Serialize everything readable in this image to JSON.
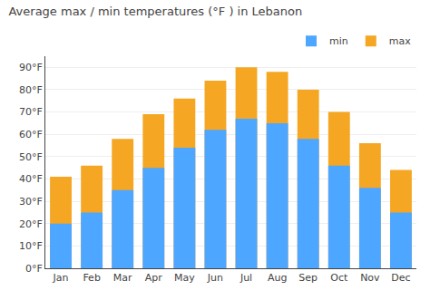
{
  "chart_data": {
    "type": "bar",
    "title": "Average max / min temperatures (°F ) in Lebanon",
    "categories": [
      "Jan",
      "Feb",
      "Mar",
      "Apr",
      "May",
      "Jun",
      "Jul",
      "Aug",
      "Sep",
      "Oct",
      "Nov",
      "Dec"
    ],
    "series": [
      {
        "name": "min",
        "color": "#4da6ff",
        "values": [
          20,
          25,
          35,
          45,
          54,
          62,
          67,
          65,
          58,
          46,
          36,
          25
        ]
      },
      {
        "name": "max",
        "color": "#f5a623",
        "values": [
          41,
          46,
          58,
          69,
          76,
          84,
          90,
          88,
          80,
          70,
          56,
          44
        ]
      }
    ],
    "ylim": [
      0,
      95
    ],
    "yticks": [
      {
        "value": 0,
        "label": "0°F"
      },
      {
        "value": 10,
        "label": "10°F"
      },
      {
        "value": 20,
        "label": "20°F"
      },
      {
        "value": 30,
        "label": "30°F"
      },
      {
        "value": 40,
        "label": "40°F"
      },
      {
        "value": 50,
        "label": "50°F"
      },
      {
        "value": 60,
        "label": "60°F"
      },
      {
        "value": 70,
        "label": "70°F"
      },
      {
        "value": 80,
        "label": "80°F"
      },
      {
        "value": 90,
        "label": "90°F"
      }
    ],
    "grid": true,
    "legend": "upper right"
  }
}
